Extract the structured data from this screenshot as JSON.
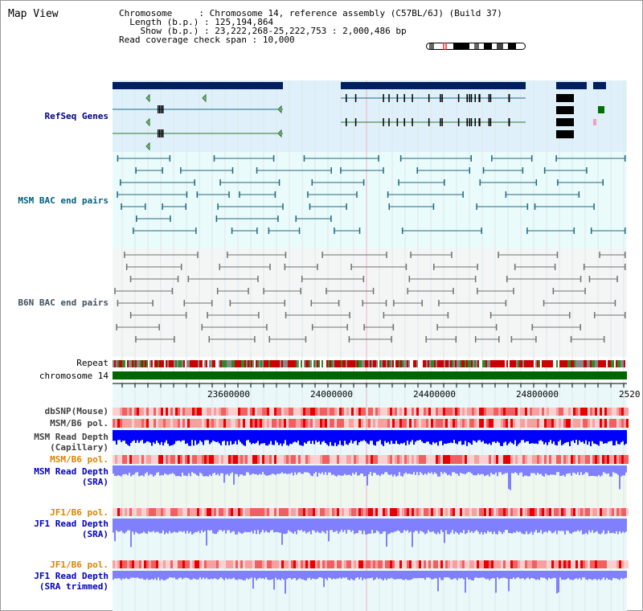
{
  "title": "Map View",
  "info": {
    "chromosome": {
      "label": "Chromosome",
      "value": "Chromosome 14, reference assembly (C57BL/6J) (Build 37)"
    },
    "length": {
      "label": "Length (b.p.)",
      "value": "125,194,864"
    },
    "show": {
      "label": "Show (b.p.)",
      "value": "23,222,268-25,222,753 : 2,000,486 bp"
    },
    "coverage": {
      "label": "Read coverage check span",
      "value": "10,000"
    }
  },
  "tracks": {
    "refseq": "RefSeq Genes",
    "msm_bac": "MSM BAC end pairs",
    "b6n_bac": "B6N BAC end pairs",
    "repeat": "Repeat",
    "chromosome": "chromosome 14",
    "dbsnp": "dbSNP(Mouse)",
    "msm_b6_pol_1": "MSM/B6 pol.",
    "msm_depth_cap_1": "MSM Read Depth",
    "msm_depth_cap_2": "(Capillary)",
    "msm_b6_pol_2": "MSM/B6 pol.",
    "msm_depth_sra_1": "MSM Read Depth",
    "msm_depth_sra_2": "(SRA)",
    "jf1_b6_pol_1": "JF1/B6 pol.",
    "jf1_depth_sra_1": "JF1 Read Depth",
    "jf1_depth_sra_2": "(SRA)",
    "jf1_b6_pol_2": "JF1/B6 pol.",
    "jf1_depth_trim_1": "JF1 Read Depth",
    "jf1_depth_trim_2": "(SRA trimmed)"
  },
  "axis": {
    "ticks": [
      "23600000",
      "24000000",
      "24400000",
      "24800000",
      "2520"
    ]
  },
  "colors": {
    "refseq_bg": "#e0f0fa",
    "bac_bg": "#eafbfb",
    "navy": "#002060",
    "chrom_green": "#006600",
    "blue": "#0000ff",
    "light_blue": "#8080ff"
  }
}
